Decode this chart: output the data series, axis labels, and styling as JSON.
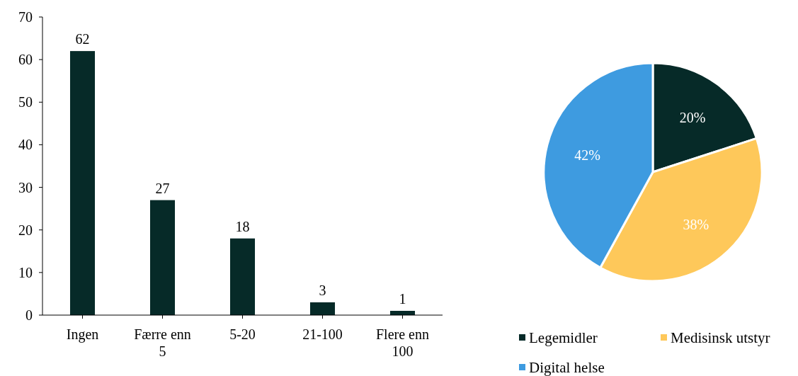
{
  "chart_data": [
    {
      "type": "bar",
      "categories": [
        "Ingen",
        "Færre enn 5",
        "5-20",
        "21-100",
        "Flere enn 100"
      ],
      "values": [
        62,
        27,
        18,
        3,
        1
      ],
      "color": "#062a28",
      "ylim": [
        0,
        70
      ],
      "yticks": [
        0,
        10,
        20,
        30,
        40,
        50,
        60,
        70
      ],
      "data_labels": true,
      "grid": false
    },
    {
      "type": "pie",
      "categories": [
        "Legemidler",
        "Medisinsk utstyr",
        "Digital helse"
      ],
      "values": [
        20,
        38,
        42
      ],
      "colors": [
        "#062a28",
        "#fec85a",
        "#3e9be0"
      ],
      "value_labels": [
        "20%",
        "38%",
        "42%"
      ],
      "legend": "bottom"
    }
  ]
}
